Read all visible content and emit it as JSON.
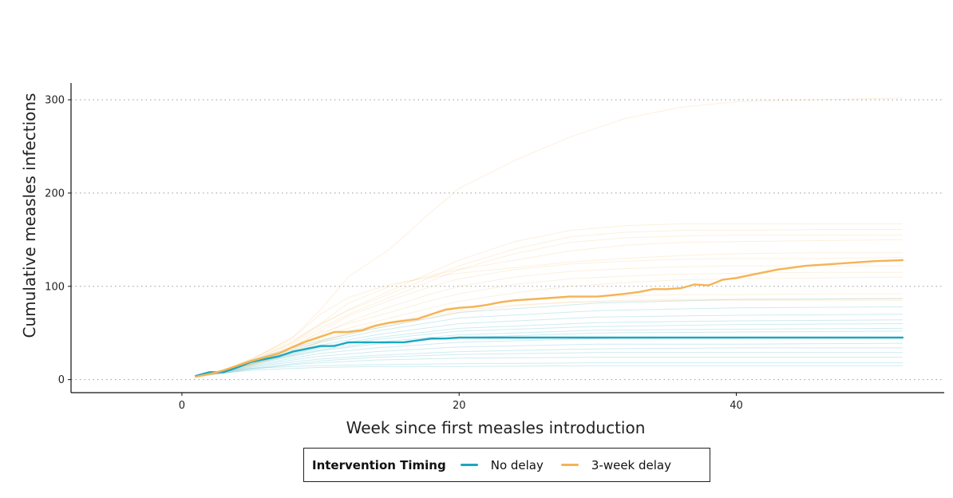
{
  "chart_data": {
    "type": "line",
    "title": "",
    "xlabel": "Week since first measles introduction",
    "ylabel": "Cumulative measles infections",
    "xlim": [
      -8,
      55
    ],
    "ylim": [
      -14,
      318
    ],
    "x_ticks": [
      0,
      20,
      40
    ],
    "y_ticks": [
      0,
      100,
      200,
      300
    ],
    "grid": "horizontal-dotted",
    "legend": {
      "position": "bottom",
      "title": "Intervention Timing",
      "entries": [
        {
          "label": "No delay",
          "color": "#1aa7c0"
        },
        {
          "label": "3-week delay",
          "color": "#f5b355"
        }
      ]
    },
    "series": [
      {
        "name": "No delay",
        "color": "#1aa7c0",
        "x": [
          1,
          2,
          3,
          4,
          5,
          6,
          7,
          8,
          9,
          10,
          11,
          12,
          13,
          14,
          15,
          16,
          17,
          18,
          19,
          20,
          22,
          24,
          26,
          28,
          30,
          32,
          34,
          36,
          38,
          40,
          42,
          44,
          46,
          48,
          50,
          52
        ],
        "y": [
          4,
          8,
          8,
          13,
          19,
          22,
          25,
          30,
          33,
          36,
          36,
          40,
          40,
          40,
          40,
          40,
          42,
          44,
          44,
          45,
          45,
          45,
          45,
          45,
          45,
          45,
          45,
          45,
          45,
          45,
          45,
          45,
          45,
          45,
          45,
          45
        ]
      },
      {
        "name": "3-week delay",
        "color": "#f5b355",
        "x": [
          1,
          2,
          3,
          4,
          5,
          6,
          7,
          8,
          9,
          10,
          11,
          12,
          13,
          14,
          15,
          16,
          17,
          18,
          19,
          20,
          21,
          22,
          23,
          24,
          26,
          28,
          30,
          32,
          33,
          34,
          35,
          36,
          37,
          38,
          39,
          40,
          41,
          42,
          43,
          44,
          45,
          46,
          48,
          50,
          52
        ],
        "y": [
          3,
          6,
          10,
          15,
          20,
          24,
          28,
          35,
          41,
          46,
          51,
          51,
          53,
          58,
          61,
          63,
          65,
          70,
          75,
          77,
          78,
          80,
          83,
          85,
          87,
          89,
          89,
          92,
          94,
          97,
          97,
          98,
          102,
          101,
          107,
          109,
          112,
          115,
          118,
          120,
          122,
          123,
          125,
          127,
          128
        ]
      }
    ],
    "simulations": [
      {
        "group": "No delay",
        "x": [
          1,
          3,
          5,
          8,
          10,
          14,
          20,
          30,
          40,
          52
        ],
        "y": [
          4,
          7,
          10,
          12,
          13,
          14,
          14,
          15,
          15,
          15
        ]
      },
      {
        "group": "No delay",
        "x": [
          1,
          3,
          5,
          8,
          10,
          14,
          20,
          30,
          40,
          52
        ],
        "y": [
          3,
          8,
          12,
          14,
          15,
          16,
          17,
          18,
          18,
          18
        ]
      },
      {
        "group": "No delay",
        "x": [
          1,
          3,
          5,
          8,
          10,
          14,
          20,
          30,
          40,
          52
        ],
        "y": [
          4,
          7,
          11,
          16,
          18,
          21,
          23,
          24,
          24,
          24
        ]
      },
      {
        "group": "No delay",
        "x": [
          1,
          3,
          5,
          8,
          10,
          14,
          20,
          30,
          40,
          52
        ],
        "y": [
          3,
          7,
          12,
          17,
          20,
          24,
          27,
          29,
          29,
          29
        ]
      },
      {
        "group": "No delay",
        "x": [
          1,
          3,
          5,
          8,
          10,
          14,
          20,
          30,
          40,
          52
        ],
        "y": [
          4,
          8,
          13,
          19,
          22,
          26,
          30,
          33,
          34,
          34
        ]
      },
      {
        "group": "No delay",
        "x": [
          1,
          3,
          5,
          8,
          10,
          14,
          20,
          30,
          40,
          52
        ],
        "y": [
          3,
          8,
          14,
          21,
          25,
          30,
          35,
          38,
          38,
          39
        ]
      },
      {
        "group": "No delay",
        "x": [
          1,
          3,
          5,
          8,
          10,
          14,
          20,
          30,
          40,
          52
        ],
        "y": [
          4,
          8,
          15,
          23,
          28,
          34,
          40,
          44,
          45,
          45
        ]
      },
      {
        "group": "No delay",
        "x": [
          1,
          3,
          5,
          8,
          10,
          14,
          20,
          30,
          40,
          52
        ],
        "y": [
          3,
          9,
          16,
          25,
          31,
          38,
          45,
          50,
          51,
          52
        ]
      },
      {
        "group": "No delay",
        "x": [
          1,
          3,
          5,
          8,
          10,
          14,
          20,
          30,
          40,
          52
        ],
        "y": [
          4,
          9,
          17,
          26,
          32,
          40,
          48,
          53,
          54,
          55
        ]
      },
      {
        "group": "No delay",
        "x": [
          1,
          3,
          5,
          8,
          10,
          14,
          20,
          30,
          40,
          52
        ],
        "y": [
          3,
          9,
          17,
          27,
          34,
          43,
          52,
          57,
          59,
          60
        ]
      },
      {
        "group": "No delay",
        "x": [
          1,
          3,
          5,
          8,
          10,
          14,
          20,
          30,
          40,
          52
        ],
        "y": [
          4,
          9,
          18,
          28,
          35,
          45,
          55,
          61,
          63,
          64
        ]
      },
      {
        "group": "No delay",
        "x": [
          1,
          3,
          5,
          8,
          10,
          14,
          20,
          30,
          40,
          52
        ],
        "y": [
          3,
          10,
          19,
          30,
          37,
          48,
          60,
          67,
          69,
          70
        ]
      },
      {
        "group": "No delay",
        "x": [
          1,
          3,
          5,
          8,
          10,
          14,
          20,
          30,
          40,
          52
        ],
        "y": [
          4,
          10,
          20,
          32,
          40,
          52,
          66,
          74,
          77,
          78
        ]
      },
      {
        "group": "No delay",
        "x": [
          1,
          3,
          5,
          8,
          10,
          14,
          20,
          30,
          40,
          52
        ],
        "y": [
          3,
          10,
          21,
          34,
          42,
          55,
          72,
          82,
          86,
          87
        ]
      },
      {
        "group": "3-week delay",
        "x": [
          1,
          3,
          5,
          8,
          10,
          12,
          15,
          18,
          20,
          24,
          28,
          32,
          36,
          40,
          46,
          52
        ],
        "y": [
          3,
          10,
          22,
          45,
          75,
          110,
          140,
          180,
          205,
          235,
          260,
          280,
          292,
          298,
          300,
          302
        ]
      },
      {
        "group": "3-week delay",
        "x": [
          1,
          3,
          5,
          8,
          10,
          12,
          15,
          18,
          20,
          24,
          28,
          32,
          36,
          40,
          46,
          52
        ],
        "y": [
          3,
          9,
          20,
          40,
          58,
          75,
          95,
          115,
          128,
          148,
          160,
          165,
          167,
          167,
          167,
          167
        ]
      },
      {
        "group": "3-week delay",
        "x": [
          1,
          3,
          5,
          8,
          10,
          12,
          15,
          18,
          20,
          24,
          28,
          32,
          36,
          40,
          46,
          52
        ],
        "y": [
          4,
          10,
          22,
          42,
          60,
          74,
          92,
          110,
          122,
          140,
          153,
          158,
          160,
          160,
          161,
          161
        ]
      },
      {
        "group": "3-week delay",
        "x": [
          1,
          3,
          5,
          8,
          10,
          12,
          15,
          18,
          20,
          24,
          28,
          32,
          36,
          40,
          46,
          52
        ],
        "y": [
          3,
          9,
          19,
          38,
          55,
          70,
          88,
          106,
          118,
          135,
          147,
          152,
          154,
          155,
          155,
          155
        ]
      },
      {
        "group": "3-week delay",
        "x": [
          1,
          3,
          5,
          8,
          10,
          12,
          15,
          18,
          20,
          24,
          28,
          32,
          36,
          40,
          46,
          52
        ],
        "y": [
          3,
          9,
          20,
          40,
          60,
          82,
          100,
          112,
          118,
          128,
          138,
          144,
          147,
          148,
          149,
          150
        ]
      },
      {
        "group": "3-week delay",
        "x": [
          1,
          3,
          5,
          8,
          10,
          12,
          15,
          18,
          20,
          24,
          28,
          32,
          36,
          40,
          46,
          52
        ],
        "y": [
          4,
          10,
          21,
          45,
          70,
          88,
          102,
          110,
          114,
          120,
          126,
          130,
          133,
          135,
          136,
          136
        ]
      },
      {
        "group": "3-week delay",
        "x": [
          1,
          3,
          5,
          8,
          10,
          12,
          15,
          18,
          20,
          24,
          28,
          32,
          36,
          40,
          46,
          52
        ],
        "y": [
          3,
          8,
          18,
          35,
          52,
          68,
          85,
          100,
          108,
          118,
          124,
          127,
          129,
          130,
          130,
          131
        ]
      },
      {
        "group": "3-week delay",
        "x": [
          1,
          3,
          5,
          8,
          10,
          12,
          15,
          18,
          20,
          24,
          28,
          32,
          36,
          40,
          46,
          52
        ],
        "y": [
          3,
          8,
          17,
          33,
          48,
          62,
          78,
          92,
          100,
          110,
          116,
          119,
          121,
          122,
          122,
          122
        ]
      },
      {
        "group": "3-week delay",
        "x": [
          1,
          3,
          5,
          8,
          10,
          12,
          15,
          18,
          20,
          24,
          28,
          32,
          36,
          40,
          46,
          52
        ],
        "y": [
          4,
          9,
          19,
          36,
          50,
          60,
          72,
          85,
          92,
          102,
          108,
          111,
          113,
          114,
          115,
          115
        ]
      },
      {
        "group": "3-week delay",
        "x": [
          1,
          3,
          5,
          8,
          10,
          12,
          15,
          18,
          20,
          24,
          28,
          32,
          36,
          40,
          46,
          52
        ],
        "y": [
          3,
          8,
          17,
          32,
          45,
          55,
          66,
          77,
          84,
          93,
          100,
          104,
          107,
          108,
          109,
          110
        ]
      },
      {
        "group": "3-week delay",
        "x": [
          1,
          3,
          5,
          8,
          10,
          12,
          15,
          18,
          20,
          24,
          28,
          32,
          36,
          40,
          46,
          52
        ],
        "y": [
          3,
          8,
          16,
          30,
          42,
          52,
          62,
          70,
          76,
          84,
          88,
          90,
          91,
          91,
          92,
          92
        ]
      },
      {
        "group": "3-week delay",
        "x": [
          1,
          3,
          5,
          8,
          10,
          12,
          15,
          18,
          20,
          24,
          28,
          32,
          36,
          40,
          46,
          52
        ],
        "y": [
          3,
          7,
          15,
          28,
          40,
          49,
          58,
          66,
          72,
          79,
          83,
          85,
          86,
          86,
          86,
          87
        ]
      },
      {
        "group": "3-week delay",
        "x": [
          1,
          3,
          5,
          8,
          10,
          12,
          15,
          18,
          20,
          24,
          28,
          32,
          36,
          40,
          46,
          52
        ],
        "y": [
          4,
          8,
          16,
          29,
          41,
          50,
          60,
          68,
          74,
          80,
          83,
          84,
          85,
          85,
          85,
          85
        ]
      }
    ]
  }
}
